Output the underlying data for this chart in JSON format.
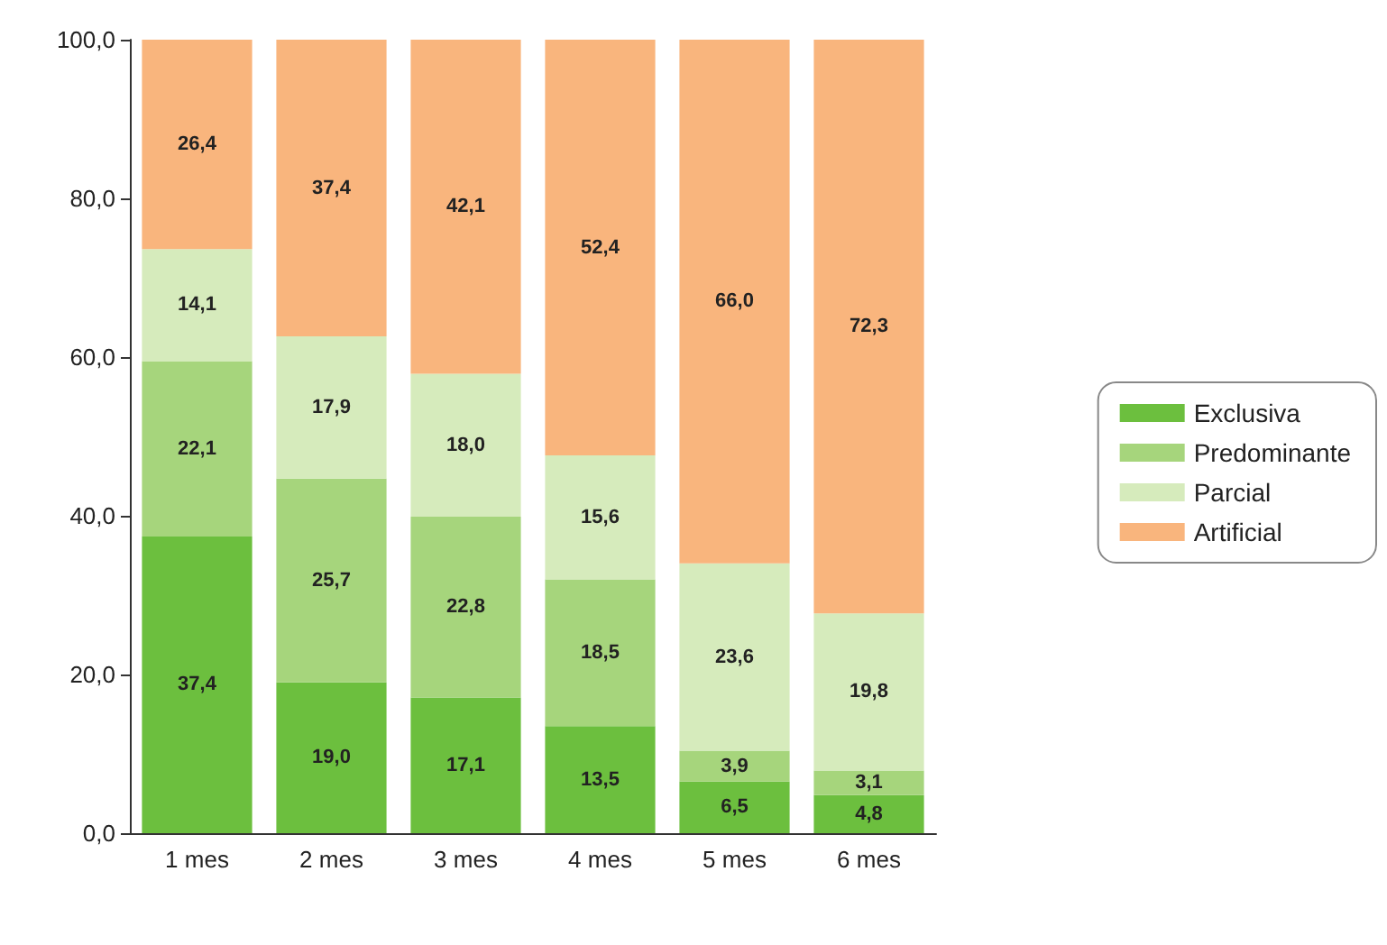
{
  "chart_data": {
    "type": "bar",
    "stacked": true,
    "categories": [
      "1 mes",
      "2 mes",
      "3 mes",
      "4 mes",
      "5 mes",
      "6 mes"
    ],
    "series": [
      {
        "name": "Exclusiva",
        "color": "#6cbf3e",
        "values": [
          37.4,
          19.0,
          17.1,
          13.5,
          6.5,
          4.8
        ],
        "value_labels": [
          "37,4",
          "19,0",
          "17,1",
          "13,5",
          "6,5",
          "4,8"
        ]
      },
      {
        "name": "Predominante",
        "color": "#a6d57c",
        "values": [
          22.1,
          25.7,
          22.8,
          18.5,
          3.9,
          3.1
        ],
        "value_labels": [
          "22,1",
          "25,7",
          "22,8",
          "18,5",
          "3,9",
          "3,1"
        ]
      },
      {
        "name": "Parcial",
        "color": "#d6ebbc",
        "values": [
          14.1,
          17.9,
          18.0,
          15.6,
          23.6,
          19.8
        ],
        "value_labels": [
          "14,1",
          "17,9",
          "18,0",
          "15,6",
          "23,6",
          "19,8"
        ]
      },
      {
        "name": "Artificial",
        "color": "#f9b57d",
        "values": [
          26.4,
          37.4,
          42.1,
          52.4,
          66.0,
          72.3
        ],
        "value_labels": [
          "26,4",
          "37,4",
          "42,1",
          "52,4",
          "66,0",
          "72,3"
        ]
      }
    ],
    "ylim": [
      0,
      100
    ],
    "yticks": [
      {
        "value": 0,
        "label": "0,0"
      },
      {
        "value": 20,
        "label": "20,0"
      },
      {
        "value": 40,
        "label": "40,0"
      },
      {
        "value": 60,
        "label": "60,0"
      },
      {
        "value": 80,
        "label": "80,0"
      },
      {
        "value": 100,
        "label": "100,0"
      }
    ],
    "grid": false,
    "legend": "right"
  }
}
